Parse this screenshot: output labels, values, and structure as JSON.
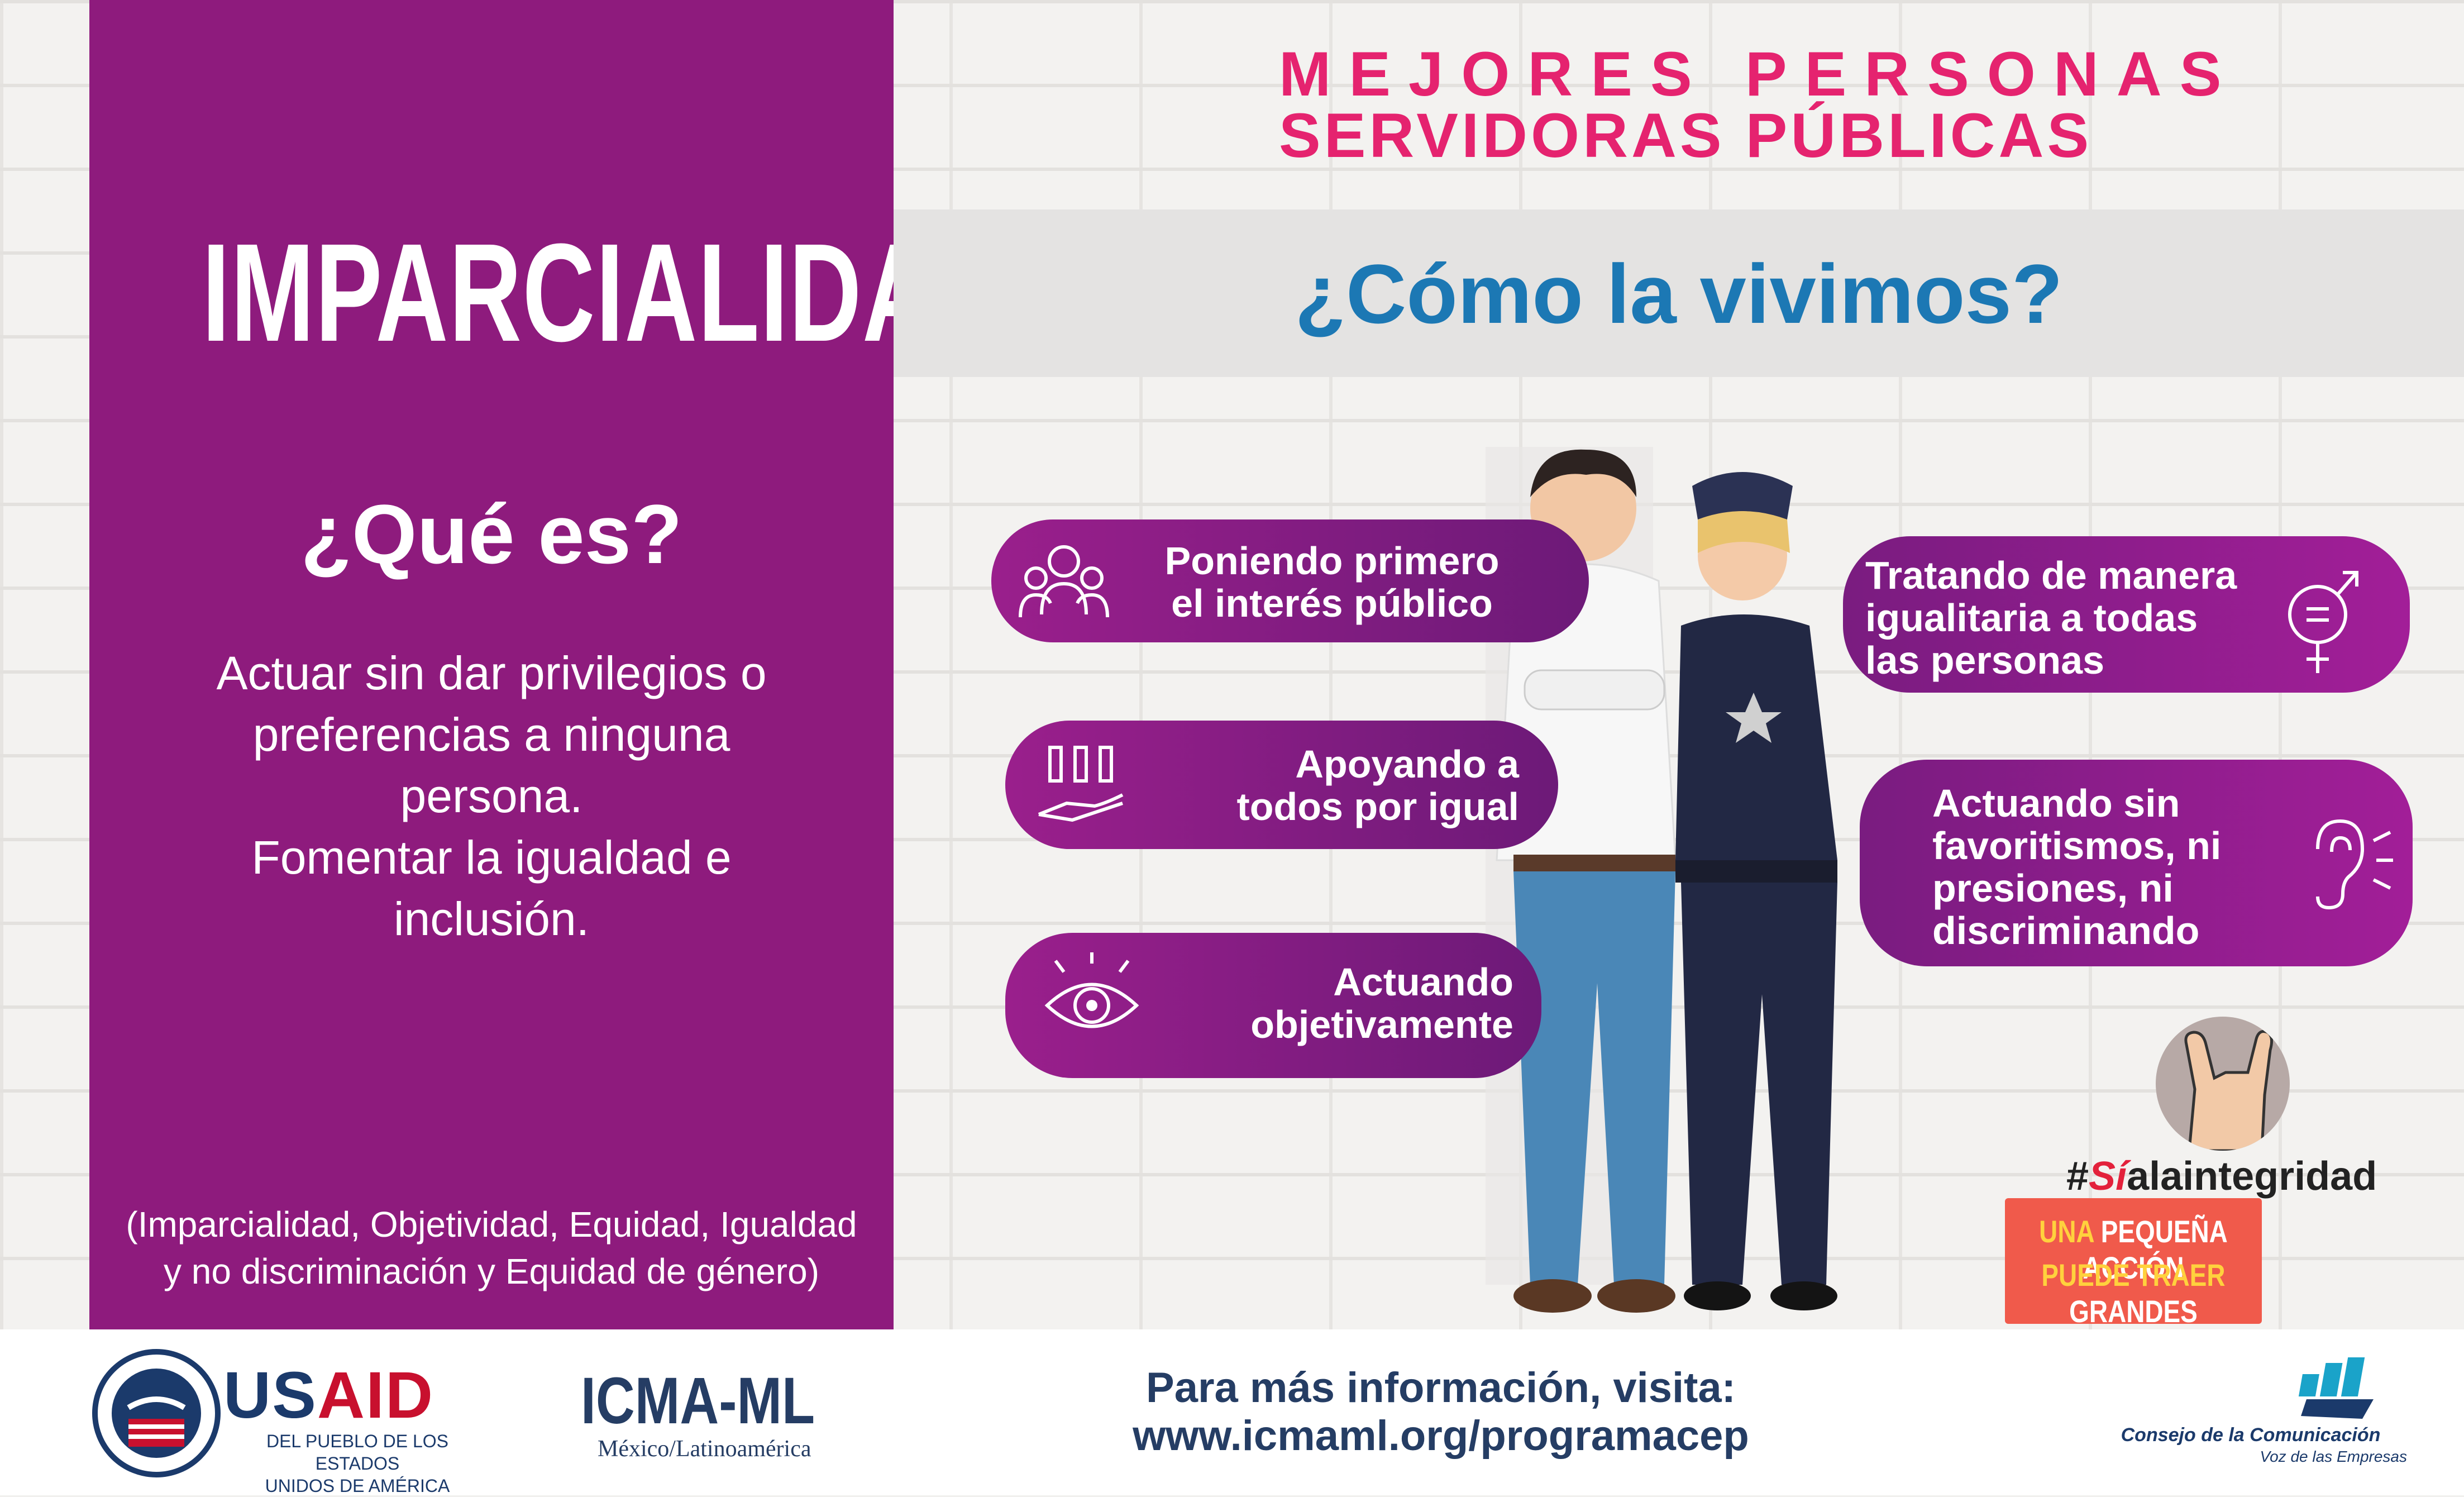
{
  "header": {
    "line1": "MEJORES PERSONAS",
    "line2": "SERVIDORAS PÚBLICAS"
  },
  "left": {
    "title": "IMPARCIALIDAD",
    "question": "¿Qué es?",
    "definition": [
      "Actuar sin dar privilegios o",
      "preferencias a ninguna",
      "persona.",
      "Fomentar  la igualdad e",
      "inclusión."
    ],
    "values_note": [
      "(Imparcialidad, Objetividad, Equidad, Igualdad",
      "y no discriminación y  Equidad de género)"
    ]
  },
  "banner": {
    "title": "¿Cómo la vivimos?"
  },
  "pills": [
    {
      "lines": [
        "Poniendo primero",
        "el interés público"
      ],
      "icon": "people-group-icon"
    },
    {
      "lines": [
        "Apoyando a",
        "todos por igual"
      ],
      "icon": "hand-support-icon"
    },
    {
      "lines": [
        "Actuando",
        "objetivamente"
      ],
      "icon": "eye-icon"
    },
    {
      "lines": [
        "Tratando de manera",
        "igualitaria a todas",
        "las personas"
      ],
      "icon": "gender-equality-icon"
    },
    {
      "lines": [
        "Actuando sin",
        "favoritismos, ni",
        "presiones, ni",
        "discriminando"
      ],
      "icon": "ear-icon"
    }
  ],
  "badge": {
    "hashtag_prefix": "#",
    "hashtag_si": "Sí",
    "hashtag_rest": "alaintegridad",
    "cta_line1_a": "UNA",
    "cta_line1_b": "PEQUEÑA ACCIÓN",
    "cta_line2_a": "PUEDE TRAER",
    "cta_line2_b": "GRANDES CAMBIOS"
  },
  "footer": {
    "usaid_us": "US",
    "usaid_aid": "AID",
    "usaid_sub": [
      "DEL PUEBLO DE LOS ESTADOS",
      "UNIDOS DE AMÉRICA"
    ],
    "icma": "ICMA-ML",
    "icma_sub": "México/Latinoamérica",
    "more_info": [
      "Para más información, visita:",
      "www.icmaml.org/programacep"
    ],
    "cc_name": "Consejo de la Comunicación",
    "cc_sub": "Voz de las Empresas"
  },
  "colors": {
    "purple": "#8e1b7d",
    "pink": "#e5236f",
    "blue": "#1c78b4",
    "navy": "#253d64",
    "coral": "#f05a4b"
  }
}
